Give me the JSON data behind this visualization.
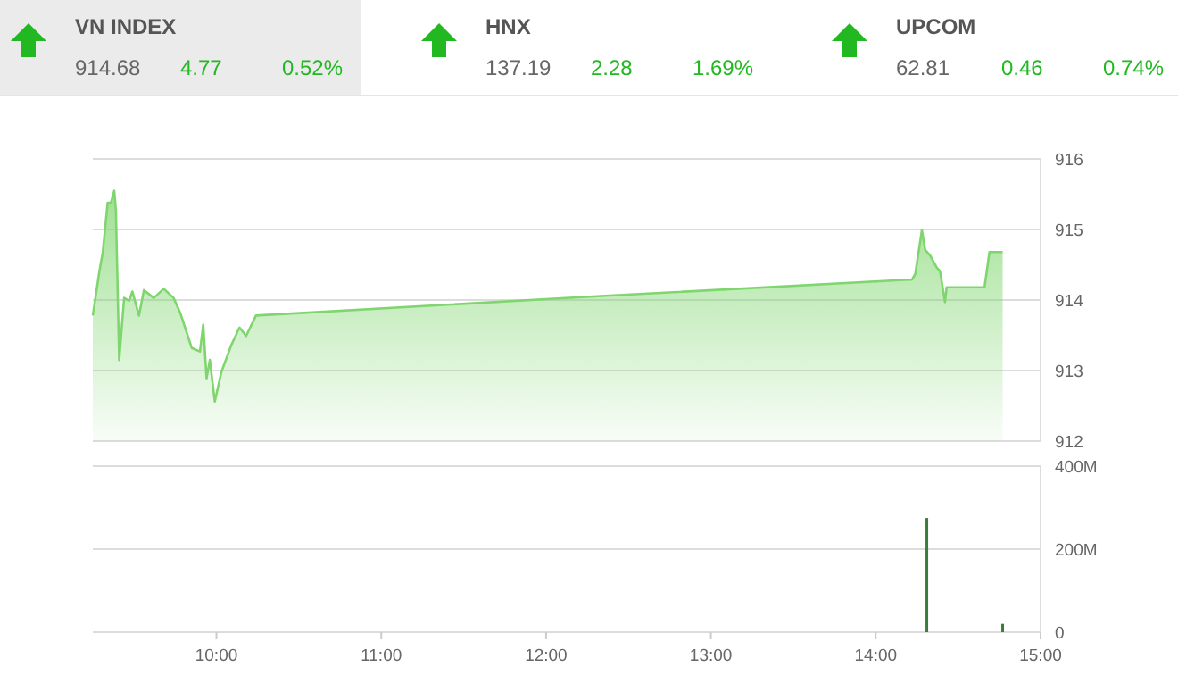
{
  "chart_data": [
    {
      "type": "other",
      "annotations": [
        "VN INDEX",
        "914.68",
        "4.77",
        "0.52%",
        "HNX",
        "137.19",
        "2.28",
        "1.69%",
        "UPCOM",
        "62.81",
        "0.46",
        "0.74%"
      ]
    },
    {
      "type": "area",
      "x": [
        9.25,
        9.29,
        9.31,
        9.34,
        9.36,
        9.38,
        9.39,
        9.41,
        9.44,
        9.47,
        9.49,
        9.53,
        9.56,
        9.62,
        9.68,
        9.74,
        9.78,
        9.85,
        9.9,
        9.92,
        9.94,
        9.96,
        9.99,
        10.03,
        10.09,
        10.14,
        10.18,
        10.24,
        12.36,
        14.22,
        14.24,
        14.28,
        14.3,
        14.33,
        14.37,
        14.39,
        14.42,
        14.43,
        14.66,
        14.69,
        14.77
      ],
      "values": [
        913.78,
        914.41,
        914.67,
        915.38,
        915.38,
        915.55,
        915.27,
        913.15,
        914.03,
        913.99,
        914.12,
        913.78,
        914.14,
        914.03,
        914.16,
        914.03,
        913.82,
        913.32,
        913.27,
        913.65,
        912.89,
        913.15,
        912.56,
        912.98,
        913.36,
        913.61,
        913.49,
        913.78,
        914.06,
        914.29,
        914.37,
        914.99,
        914.71,
        914.63,
        914.46,
        914.41,
        913.97,
        914.18,
        914.18,
        914.68,
        914.68
      ],
      "color": "#7fd66e",
      "xlim": [
        9.25,
        15
      ],
      "ylim": [
        912,
        916
      ],
      "yticks": [
        912,
        913,
        914,
        915,
        916
      ],
      "grid": true,
      "tick_labels": "y"
    },
    {
      "type": "bar",
      "x": [
        14.31,
        14.77
      ],
      "values": [
        275,
        20
      ],
      "color": "#3a7d3a",
      "xlim": [
        9.25,
        15
      ],
      "ylim": [
        0,
        400
      ],
      "yticks": [
        0,
        {
          "value": 200,
          "label": "200M"
        },
        {
          "value": 400,
          "label": "400M"
        }
      ],
      "xticks": [
        {
          "value": 10,
          "label": "10:00"
        },
        {
          "value": 11,
          "label": "11:00"
        },
        {
          "value": 12,
          "label": "12:00"
        },
        {
          "value": 13,
          "label": "13:00"
        },
        {
          "value": 14,
          "label": "14:00"
        },
        {
          "value": 15,
          "label": "15:00"
        }
      ],
      "grid": true
    }
  ]
}
